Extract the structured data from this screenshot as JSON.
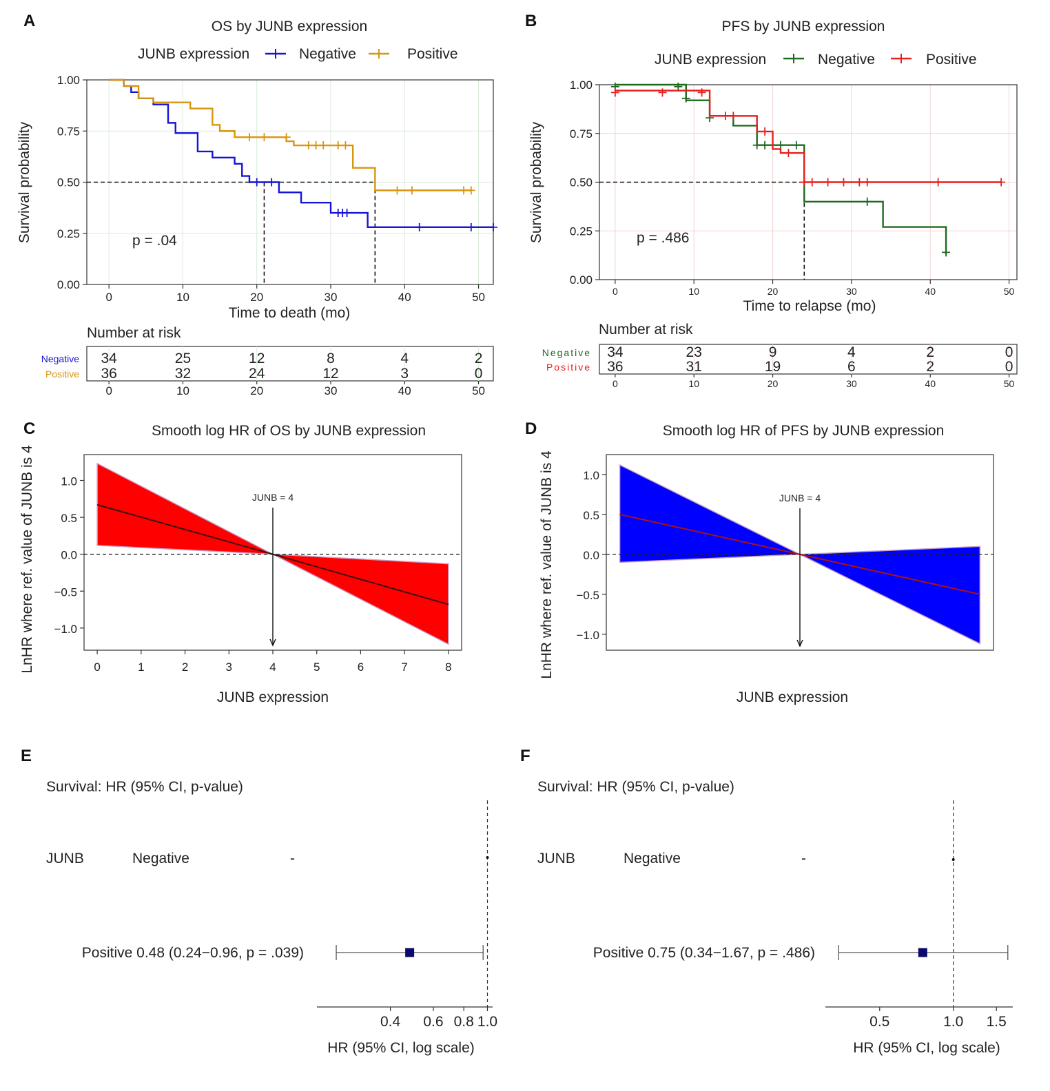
{
  "colors": {
    "os_negative": "#1515d6",
    "os_positive": "#d8960f",
    "pfs_negative": "#1e6b1e",
    "pfs_positive": "#e81e1e",
    "band_os": "#ff0000",
    "band_pfs": "#0000ff",
    "line_os": "#3a1010",
    "line_pfs": "#b01010",
    "forest_box": "#0a0a6e"
  },
  "chart_data": [
    {
      "panel": "A",
      "type": "line",
      "subtype": "kaplan-meier",
      "title": "OS by JUNB expression",
      "legend_title": "JUNB expression",
      "legend_placement": "top",
      "xlabel": "Time to death (mo)",
      "ylabel": "Survival probability",
      "xlim": [
        -3,
        52
      ],
      "ylim": [
        0,
        1
      ],
      "x_ticks": [
        0,
        10,
        20,
        30,
        40,
        50
      ],
      "y_ticks": [
        "0.00",
        "0.25",
        "0.50",
        "0.75",
        "1.00"
      ],
      "grid": true,
      "annotation": "p = .04",
      "median_survival": [
        {
          "series": "Negative",
          "x": 21
        },
        {
          "series": "Positive",
          "x": 36
        }
      ],
      "series": [
        {
          "name": "Negative",
          "color_key": "os_negative",
          "steps": [
            [
              0,
              1.0
            ],
            [
              2,
              0.97
            ],
            [
              3,
              0.94
            ],
            [
              4,
              0.91
            ],
            [
              6,
              0.88
            ],
            [
              8,
              0.79
            ],
            [
              9,
              0.74
            ],
            [
              12,
              0.65
            ],
            [
              14,
              0.62
            ],
            [
              17,
              0.59
            ],
            [
              18,
              0.53
            ],
            [
              19,
              0.5
            ],
            [
              23,
              0.45
            ],
            [
              26,
              0.4
            ],
            [
              30,
              0.35
            ],
            [
              35,
              0.28
            ],
            [
              52,
              0.28
            ]
          ],
          "censored": [
            [
              20,
              0.5
            ],
            [
              22,
              0.5
            ],
            [
              31,
              0.35
            ],
            [
              31.6,
              0.35
            ],
            [
              32.2,
              0.35
            ],
            [
              42,
              0.28
            ],
            [
              49,
              0.28
            ],
            [
              52,
              0.28
            ]
          ]
        },
        {
          "name": "Positive",
          "color_key": "os_positive",
          "steps": [
            [
              0,
              1.0
            ],
            [
              2,
              0.97
            ],
            [
              4,
              0.91
            ],
            [
              6,
              0.89
            ],
            [
              11,
              0.86
            ],
            [
              14,
              0.78
            ],
            [
              15,
              0.75
            ],
            [
              17,
              0.72
            ],
            [
              24,
              0.7
            ],
            [
              25,
              0.68
            ],
            [
              33,
              0.57
            ],
            [
              36,
              0.46
            ],
            [
              49,
              0.46
            ]
          ],
          "censored": [
            [
              19,
              0.72
            ],
            [
              21,
              0.72
            ],
            [
              24,
              0.72
            ],
            [
              27,
              0.68
            ],
            [
              28,
              0.68
            ],
            [
              29,
              0.68
            ],
            [
              31,
              0.68
            ],
            [
              32,
              0.68
            ],
            [
              39,
              0.46
            ],
            [
              41,
              0.46
            ],
            [
              48,
              0.46
            ],
            [
              49,
              0.46
            ]
          ]
        }
      ],
      "risk_table": {
        "title": "Number at risk",
        "times": [
          0,
          10,
          20,
          30,
          40,
          50
        ],
        "rows": [
          {
            "name": "Negative",
            "color_key": "os_negative",
            "values": [
              34,
              25,
              12,
              8,
              4,
              2
            ]
          },
          {
            "name": "Positive",
            "color_key": "os_positive",
            "values": [
              36,
              32,
              24,
              12,
              3,
              0
            ]
          }
        ]
      }
    },
    {
      "panel": "B",
      "type": "line",
      "subtype": "kaplan-meier",
      "title": "PFS by JUNB expression",
      "legend_title": "JUNB expression",
      "legend_placement": "top",
      "xlabel": "Time to relapse (mo)",
      "ylabel": "Survival probability",
      "xlim": [
        -2,
        51
      ],
      "ylim": [
        0,
        1
      ],
      "x_ticks": [
        0,
        10,
        20,
        30,
        40,
        50
      ],
      "y_ticks": [
        "0.00",
        "0.25",
        "0.50",
        "0.75",
        "1.00"
      ],
      "grid": true,
      "annotation": "p = .486",
      "median_survival": [
        {
          "series": "both",
          "x": 24
        }
      ],
      "series": [
        {
          "name": "Negative",
          "color_key": "pfs_negative",
          "steps": [
            [
              0,
              1.0
            ],
            [
              9,
              0.92
            ],
            [
              12,
              0.84
            ],
            [
              15,
              0.79
            ],
            [
              18,
              0.69
            ],
            [
              24,
              0.4
            ],
            [
              34,
              0.27
            ],
            [
              42,
              0.13
            ]
          ],
          "censored": [
            [
              0,
              0.99
            ],
            [
              8,
              0.99
            ],
            [
              9,
              0.93
            ],
            [
              12,
              0.83
            ],
            [
              18,
              0.69
            ],
            [
              19,
              0.69
            ],
            [
              21,
              0.69
            ],
            [
              23,
              0.69
            ],
            [
              32,
              0.4
            ],
            [
              42,
              0.14
            ]
          ]
        },
        {
          "name": "Positive",
          "color_key": "pfs_positive",
          "steps": [
            [
              0,
              0.97
            ],
            [
              12,
              0.84
            ],
            [
              18,
              0.76
            ],
            [
              20,
              0.67
            ],
            [
              21,
              0.65
            ],
            [
              24,
              0.5
            ],
            [
              49,
              0.5
            ]
          ],
          "censored": [
            [
              0,
              0.96
            ],
            [
              6,
              0.96
            ],
            [
              11,
              0.96
            ],
            [
              14,
              0.84
            ],
            [
              15,
              0.84
            ],
            [
              19,
              0.76
            ],
            [
              22,
              0.65
            ],
            [
              24,
              0.5
            ],
            [
              25,
              0.5
            ],
            [
              27,
              0.5
            ],
            [
              29,
              0.5
            ],
            [
              31,
              0.5
            ],
            [
              32,
              0.5
            ],
            [
              41,
              0.5
            ],
            [
              49,
              0.5
            ]
          ]
        }
      ],
      "risk_table": {
        "title": "Number at risk",
        "times": [
          0,
          10,
          20,
          30,
          40,
          50
        ],
        "rows": [
          {
            "name": "Negative",
            "color_key": "pfs_negative",
            "values": [
              34,
              23,
              9,
              4,
              2,
              0
            ]
          },
          {
            "name": "Positive",
            "color_key": "pfs_positive",
            "values": [
              36,
              31,
              19,
              6,
              2,
              0
            ]
          }
        ]
      }
    },
    {
      "panel": "C",
      "type": "area",
      "subtype": "smooth-log-hr",
      "title": "Smooth log HR of OS by JUNB expression",
      "xlabel": "JUNB expression",
      "ylabel": "LnHR where ref. value of JUNB is 4",
      "xlim": [
        -0.3,
        8.3
      ],
      "ylim": [
        -1.3,
        1.35
      ],
      "x_ticks": [
        "0",
        "1",
        "2",
        "3",
        "4",
        "5",
        "6",
        "7",
        "8"
      ],
      "y_ticks": [
        "−1.0",
        "−0.5",
        "0.0",
        "0.5",
        "1.0"
      ],
      "ref_value": 4,
      "ref_label": "JUNB = 4",
      "line": [
        [
          0,
          0.67
        ],
        [
          4,
          0.0
        ],
        [
          8,
          -0.68
        ]
      ],
      "upper": [
        [
          0,
          1.23
        ],
        [
          4,
          0.0
        ],
        [
          8,
          -0.13
        ]
      ],
      "lower": [
        [
          0,
          0.12
        ],
        [
          4,
          0.0
        ],
        [
          8,
          -1.22
        ]
      ]
    },
    {
      "panel": "D",
      "type": "area",
      "subtype": "smooth-log-hr",
      "title": "Smooth log HR of PFS by JUNB expression",
      "xlabel": "JUNB expression",
      "ylabel": "LnHR where ref. value of JUNB is 4",
      "xlim": [
        -0.3,
        8.3
      ],
      "ylim": [
        -1.2,
        1.25
      ],
      "x_ticks": [],
      "y_ticks": [
        "−1.0",
        "−0.5",
        "0.0",
        "0.5",
        "1.0"
      ],
      "ref_value": 4,
      "ref_label": "JUNB = 4",
      "line": [
        [
          0,
          0.5
        ],
        [
          4,
          0.0
        ],
        [
          8,
          -0.5
        ]
      ],
      "upper": [
        [
          0,
          1.12
        ],
        [
          4,
          0.0
        ],
        [
          8,
          0.1
        ]
      ],
      "lower": [
        [
          0,
          -0.1
        ],
        [
          4,
          0.0
        ],
        [
          8,
          -1.12
        ]
      ]
    },
    {
      "panel": "E",
      "type": "scatter",
      "subtype": "forest",
      "header": "Survival: HR (95% CI, p-value)",
      "variable": "JUNB",
      "reference_level": "Negative",
      "reference_value": "-",
      "xlabel": "HR (95% CI, log scale)",
      "x_scale": "log",
      "xlim": [
        0.2,
        1.05
      ],
      "x_ticks": [
        {
          "v": 0.4,
          "label": "0.4"
        },
        {
          "v": 0.6,
          "label": "0.6"
        },
        {
          "v": 0.8,
          "label": "0.8"
        },
        {
          "v": 1.0,
          "label": "1.0"
        }
      ],
      "estimate": {
        "label": "Positive 0.48 (0.24−0.96, p = .039)",
        "hr": 0.48,
        "lo": 0.24,
        "hi": 0.96
      }
    },
    {
      "panel": "F",
      "type": "scatter",
      "subtype": "forest",
      "header": "Survival: HR (95% CI, p-value)",
      "variable": "JUNB",
      "reference_level": "Negative",
      "reference_value": "-",
      "xlabel": "HR (95% CI, log scale)",
      "x_scale": "log",
      "xlim": [
        0.3,
        1.75
      ],
      "x_ticks": [
        {
          "v": 0.5,
          "label": "0.5"
        },
        {
          "v": 1.0,
          "label": "1.0"
        },
        {
          "v": 1.5,
          "label": "1.5"
        }
      ],
      "estimate": {
        "label": "Positive 0.75 (0.34−1.67, p = .486)",
        "hr": 0.75,
        "lo": 0.34,
        "hi": 1.67
      }
    }
  ]
}
